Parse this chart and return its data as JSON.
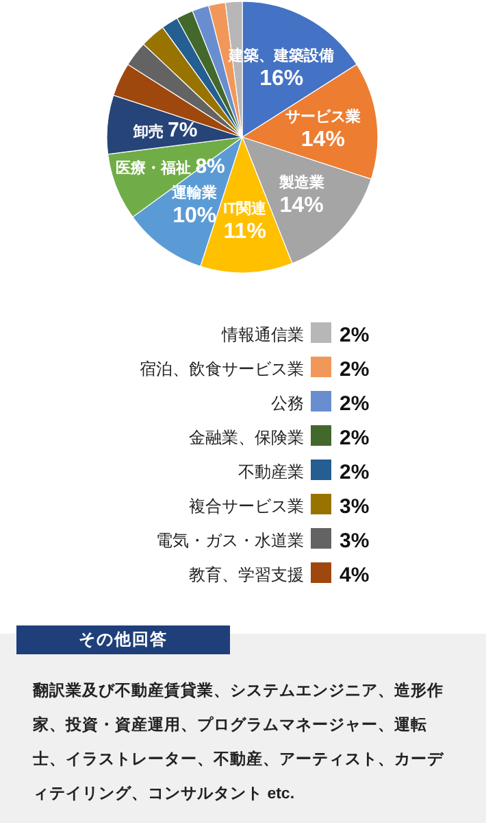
{
  "chart_data": {
    "type": "pie",
    "categories": [
      "建築、建築設備",
      "サービス業",
      "製造業",
      "IT関連",
      "運輸業",
      "医療・福祉",
      "卸売",
      "教育、学習支援",
      "電気・ガス・水道業",
      "複合サービス業",
      "不動産業",
      "金融業、保険業",
      "公務",
      "宿泊、飲食サービス業",
      "情報通信業"
    ],
    "values": [
      16,
      14,
      14,
      11,
      10,
      8,
      7,
      4,
      3,
      3,
      2,
      2,
      2,
      2,
      2
    ],
    "colors": [
      "#4472c4",
      "#ed7d31",
      "#a5a5a5",
      "#ffc000",
      "#5b9bd5",
      "#70ad47",
      "#264478",
      "#9e480e",
      "#636363",
      "#997300",
      "#255e91",
      "#43682b",
      "#698ed0",
      "#f1975a",
      "#b7b7b7"
    ],
    "value_labels": [
      "16%",
      "14%",
      "14%",
      "11%",
      "10%",
      "8%",
      "7%",
      "4%",
      "3%",
      "3%",
      "2%",
      "2%",
      "2%",
      "2%",
      "2%"
    ],
    "legend": "bottom",
    "annotations": [
      "その他回答",
      "翻訳業及び不動産賃貸業、システムエンジニア、造形作家、投資・資産運用、プログラムマネージャー、運転士、イラストレーター、不動産、アーティスト、カーディテイリング、コンサルタント etc."
    ]
  }
}
